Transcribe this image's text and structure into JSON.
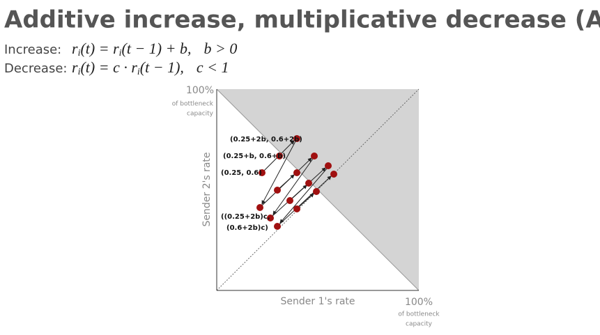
{
  "title": "Additive increase, multiplicative decrease (AIMD)",
  "equations": [
    {
      "label": "Increase:",
      "parts": [
        "r",
        "i",
        "(t) = r",
        "i",
        "(t − 1) + b,",
        "b > 0"
      ]
    },
    {
      "label": "Decrease:",
      "parts": [
        "r",
        "i",
        "(t) = c · r",
        "i",
        "(t − 1),",
        "c < 1"
      ]
    }
  ],
  "diagram": {
    "y_axis": {
      "label": "Sender 2's rate",
      "max": "100%",
      "max_note": [
        "of bottleneck",
        "capacity"
      ]
    },
    "x_axis": {
      "label": "Sender 1's rate",
      "max": "100%",
      "max_note": [
        "of bottleneck",
        "capacity"
      ]
    },
    "point_labels": [
      "(0.25+2b, 0.6+2b)",
      "(0.25+b, 0.6+b)",
      "(0.25, 0.6)",
      "((0.25+2b)c,",
      "(0.6+2b)c)"
    ]
  }
}
